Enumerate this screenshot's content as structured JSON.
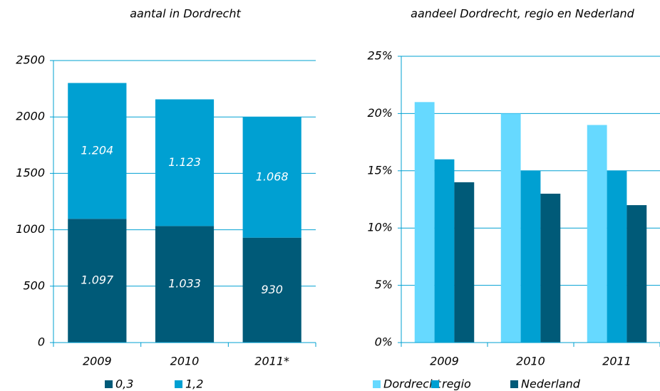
{
  "chart_data": [
    {
      "type": "bar",
      "stacked": true,
      "title": "aantal in Dordrecht",
      "categories": [
        "2009",
        "2010",
        "2011*"
      ],
      "series": [
        {
          "name": "0,3",
          "color": "#005a78",
          "values": [
            1097,
            1033,
            930
          ],
          "value_labels": [
            "1.097",
            "1.033",
            "930"
          ]
        },
        {
          "name": "1,2",
          "color": "#00a0d2",
          "values": [
            1204,
            1123,
            1068
          ],
          "value_labels": [
            "1.204",
            "1.123",
            "1.068"
          ]
        }
      ],
      "ylim": [
        0,
        2500
      ],
      "yticks": [
        0,
        500,
        1000,
        1500,
        2000,
        2500
      ],
      "grid": true,
      "legend": "bottom"
    },
    {
      "type": "bar",
      "stacked": false,
      "title": "aandeel Dordrecht, regio en Nederland",
      "categories": [
        "2009",
        "2010",
        "2011"
      ],
      "series": [
        {
          "name": "Dordrecht",
          "color": "#66d9ff",
          "values": [
            21,
            20,
            19
          ]
        },
        {
          "name": "regio",
          "color": "#00a0d2",
          "values": [
            16,
            15,
            15
          ]
        },
        {
          "name": "Nederland",
          "color": "#005a78",
          "values": [
            14,
            13,
            12
          ]
        }
      ],
      "ylim": [
        0,
        25
      ],
      "yticks": [
        {
          "value": 0,
          "label": "0%"
        },
        {
          "value": 5,
          "label": "5%"
        },
        {
          "value": 10,
          "label": "10%"
        },
        {
          "value": 15,
          "label": "15%"
        },
        {
          "value": 20,
          "label": "20%"
        },
        {
          "value": 25,
          "label": "25%"
        }
      ],
      "grid": true,
      "legend": "bottom"
    }
  ]
}
